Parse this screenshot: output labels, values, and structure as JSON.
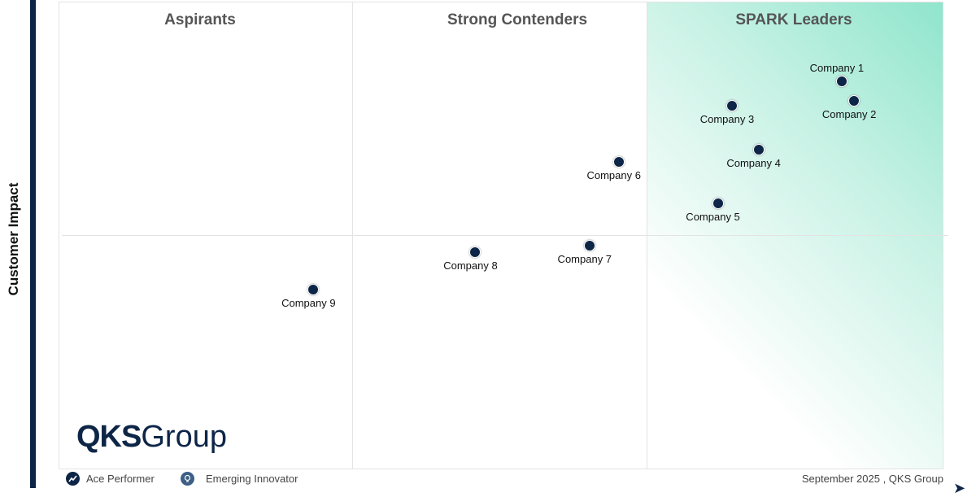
{
  "chart_data": {
    "type": "scatter",
    "ylabel": "Customer Impact",
    "xlabel": "",
    "xlim": [
      0,
      100
    ],
    "ylim": [
      0,
      100
    ],
    "grid": false,
    "quadrants": [
      "Aspirants",
      "Strong Contenders",
      "SPARK Leaders"
    ],
    "points": [
      {
        "label": "Company 1",
        "x": 88.5,
        "y": 83.0,
        "label_pos": "above"
      },
      {
        "label": "Company 2",
        "x": 89.9,
        "y": 78.8,
        "label_pos": "below"
      },
      {
        "label": "Company 3",
        "x": 76.1,
        "y": 77.7,
        "label_pos": "below"
      },
      {
        "label": "Company 4",
        "x": 79.1,
        "y": 68.3,
        "label_pos": "below"
      },
      {
        "label": "Company 5",
        "x": 74.5,
        "y": 56.9,
        "label_pos": "below"
      },
      {
        "label": "Company 6",
        "x": 63.3,
        "y": 65.7,
        "label_pos": "below"
      },
      {
        "label": "Company 7",
        "x": 60.0,
        "y": 47.8,
        "label_pos": "below"
      },
      {
        "label": "Company 8",
        "x": 47.1,
        "y": 46.4,
        "label_pos": "below"
      },
      {
        "label": "Company 9",
        "x": 28.8,
        "y": 38.4,
        "label_pos": "below"
      }
    ],
    "colors": {
      "point": "#0d2547",
      "leaders_gradient": "#8fe5cc"
    }
  },
  "logo": {
    "bold": "QKS",
    "light": "Group"
  },
  "legend": [
    {
      "label": "Ace Performer",
      "icon": "trend-line-icon"
    },
    {
      "label": "Emerging Innovator",
      "icon": "lightbulb-icon"
    }
  ],
  "footer": "September  2025 , QKS Group"
}
